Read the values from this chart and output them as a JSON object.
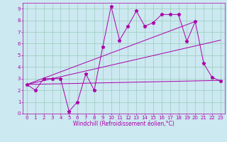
{
  "bg_color": "#cce8f0",
  "line_color": "#aa00aa",
  "grid_color": "#99ccbb",
  "xlim": [
    -0.5,
    23.5
  ],
  "ylim": [
    0,
    9.5
  ],
  "xticks": [
    0,
    1,
    2,
    3,
    4,
    5,
    6,
    7,
    8,
    9,
    10,
    11,
    12,
    13,
    14,
    15,
    16,
    17,
    18,
    19,
    20,
    21,
    22,
    23
  ],
  "yticks": [
    0,
    1,
    2,
    3,
    4,
    5,
    6,
    7,
    8,
    9
  ],
  "scatter_x": [
    0,
    1,
    2,
    3,
    4,
    5,
    6,
    7,
    8,
    9,
    10,
    11,
    12,
    13,
    14,
    15,
    16,
    17,
    18,
    19,
    20,
    21,
    22,
    23
  ],
  "scatter_y": [
    2.5,
    2.0,
    3.0,
    3.0,
    3.0,
    0.2,
    1.0,
    3.4,
    2.0,
    5.7,
    9.2,
    6.3,
    7.5,
    8.8,
    7.5,
    7.8,
    8.5,
    8.5,
    8.5,
    6.2,
    7.9,
    4.3,
    3.1,
    2.8
  ],
  "line1_x": [
    0,
    20
  ],
  "line1_y": [
    2.5,
    7.9
  ],
  "line2_x": [
    0,
    23
  ],
  "line2_y": [
    2.5,
    6.3
  ],
  "line3_x": [
    0,
    23
  ],
  "line3_y": [
    2.5,
    2.85
  ],
  "xlabel": "Windchill (Refroidissement éolien,°C)",
  "xlabel_fontsize": 5.5,
  "tick_fontsize": 5,
  "tick_color": "#aa00aa",
  "spine_color": "#aa00aa",
  "marker": "*",
  "markersize": 3.5,
  "linewidth": 0.7
}
